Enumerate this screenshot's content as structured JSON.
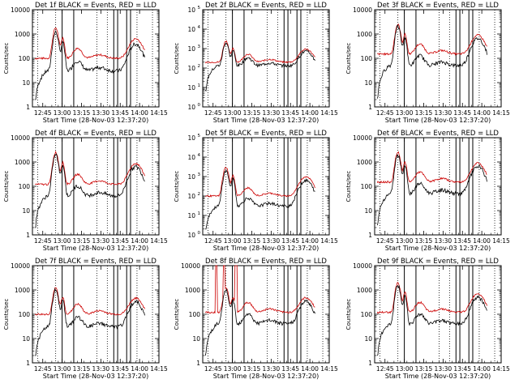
{
  "chart_data": {
    "type": "line",
    "xlabel": "Start Time (28-Nov-03 12:37:20)",
    "ylabel": "Counts/sec",
    "xticks": [
      "12:45",
      "13:00",
      "13:15",
      "13:30",
      "13:45",
      "14:00",
      "14:15"
    ],
    "xlim_minutes_after_1245": [
      -8,
      90
    ],
    "scale": "log",
    "series_colors": {
      "events": "#000000",
      "lld": "#cc0000"
    },
    "panels": [
      {
        "title": "Det 1f BLACK = Events, RED = LLD",
        "ytick_style": "plain",
        "ylim": [
          1,
          10000
        ],
        "yticks": [
          "1",
          "10",
          "100",
          "1000",
          "10000"
        ],
        "lld_peak": 1800,
        "lld_base": 100,
        "ev_peak": 1200,
        "ev_base": 30
      },
      {
        "title": "Det 2f BLACK = Events, RED = LLD",
        "ytick_style": "exp",
        "ylim": [
          1,
          100000
        ],
        "yticks": [
          "10^0",
          "10^1",
          "10^2",
          "10^3",
          "10^4",
          "10^5"
        ],
        "lld_peak": 2500,
        "lld_base": 200,
        "ev_peak": 2000,
        "ev_base": 130
      },
      {
        "title": "Det 3f BLACK = Events, RED = LLD",
        "ytick_style": "plain",
        "ylim": [
          1,
          10000
        ],
        "yticks": [
          "1",
          "10",
          "100",
          "1000",
          "10000"
        ],
        "lld_peak": 2500,
        "lld_base": 150,
        "ev_peak": 2000,
        "ev_base": 50
      },
      {
        "title": "Det 4f BLACK = Events, RED = LLD",
        "ytick_style": "plain",
        "ylim": [
          1,
          10000
        ],
        "yticks": [
          "1",
          "10",
          "100",
          "1000",
          "10000"
        ],
        "lld_peak": 2500,
        "lld_base": 120,
        "ev_peak": 2000,
        "ev_base": 40
      },
      {
        "title": "Det 5f BLACK = Events, RED = LLD",
        "ytick_style": "exp",
        "ylim": [
          1,
          100000
        ],
        "yticks": [
          "10^0",
          "10^1",
          "10^2",
          "10^3",
          "10^4",
          "10^5"
        ],
        "lld_peak": 3000,
        "lld_base": 100,
        "ev_peak": 2000,
        "ev_base": 30
      },
      {
        "title": "Det 6f BLACK = Events, RED = LLD",
        "ytick_style": "plain",
        "ylim": [
          1,
          10000
        ],
        "yticks": [
          "1",
          "10",
          "100",
          "1000",
          "10000"
        ],
        "lld_peak": 2500,
        "lld_base": 150,
        "ev_peak": 2000,
        "ev_base": 50
      },
      {
        "title": "Det 7f BLACK = Events, RED = LLD",
        "ytick_style": "plain",
        "ylim": [
          1,
          10000
        ],
        "yticks": [
          "1",
          "10",
          "100",
          "1000",
          "10000"
        ],
        "lld_peak": 1200,
        "lld_base": 100,
        "ev_peak": 1000,
        "ev_base": 30
      },
      {
        "title": "Det 8f BLACK = Events, RED = LLD",
        "ytick_style": "plain",
        "ylim": [
          1,
          10000
        ],
        "yticks": [
          "1",
          "10",
          "100",
          "1000",
          "10000"
        ],
        "lld_peak": 1200,
        "lld_base": 120,
        "ev_peak": 1000,
        "ev_base": 40,
        "lld_spikes": true
      },
      {
        "title": "Det 9f BLACK = Events, RED = LLD",
        "ytick_style": "plain",
        "ylim": [
          1,
          10000
        ],
        "yticks": [
          "1",
          "10",
          "100",
          "1000",
          "10000"
        ],
        "lld_peak": 2000,
        "lld_base": 120,
        "ev_peak": 1500,
        "ev_base": 40
      }
    ],
    "solid_markers_minutes": [
      15,
      24,
      55,
      58,
      65,
      68
    ],
    "dotted_markers_minutes": [
      -4,
      10,
      42,
      50,
      73,
      85
    ]
  }
}
